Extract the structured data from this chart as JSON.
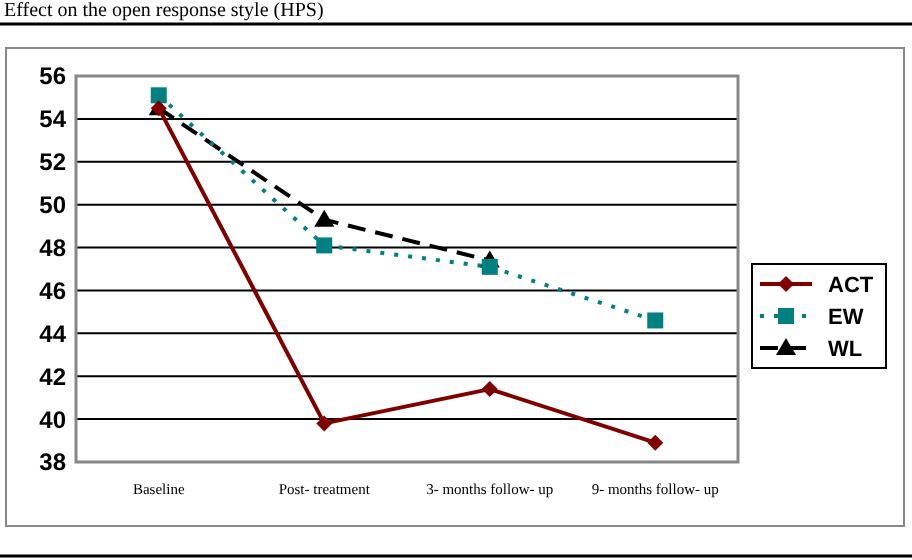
{
  "chart_data": {
    "type": "line",
    "title": "Effect on the open response style (HPS)",
    "categories": [
      "Baseline",
      "Post- treatment",
      "3- months follow- up",
      "9- months follow- up"
    ],
    "series": [
      {
        "name": "ACT",
        "color": "#800000",
        "values": [
          54.5,
          39.8,
          41.4,
          38.9
        ],
        "marker": "diamond",
        "line_style": "solid"
      },
      {
        "name": "EW",
        "color": "#008080",
        "values": [
          55.1,
          48.1,
          47.1,
          44.6
        ],
        "marker": "square",
        "line_style": "dotted"
      },
      {
        "name": "WL",
        "color": "#000000",
        "values": [
          54.5,
          49.3,
          47.4,
          null
        ],
        "marker": "triangle",
        "line_style": "dashed"
      }
    ],
    "ylim": [
      38,
      56
    ],
    "yticks": [
      38,
      40,
      42,
      44,
      46,
      48,
      50,
      52,
      54,
      56
    ],
    "grid": "y",
    "legend": "right"
  }
}
